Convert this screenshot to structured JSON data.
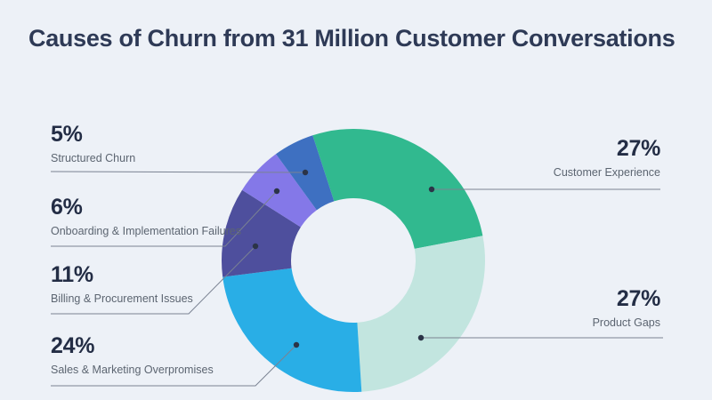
{
  "page": {
    "background": "#EDF1F7"
  },
  "header": {
    "title": "Causes of Churn from 31 Million Customer Conversations"
  },
  "chart_data": {
    "type": "pie",
    "subtype": "donut",
    "title": "Causes of Churn from 31 Million Customer Conversations",
    "clockwise": true,
    "start_angle_deg": -18,
    "legend": "none",
    "categories": [
      "Customer Experience",
      "Product Gaps",
      "Sales & Marketing Overpromises",
      "Billing & Procurement Issues",
      "Onboarding & Implementation Failures",
      "Structured Churn"
    ],
    "values": [
      27,
      27,
      24,
      11,
      6,
      5
    ],
    "segments": [
      {
        "label": "Customer Experience",
        "pct": 27,
        "pct_label": "27%",
        "color": "#31B98F",
        "label_side": "right"
      },
      {
        "label": "Product Gaps",
        "pct": 27,
        "pct_label": "27%",
        "color": "#C2E5DF",
        "label_side": "right"
      },
      {
        "label": "Sales & Marketing Overpromises",
        "pct": 24,
        "pct_label": "24%",
        "color": "#29AEE6",
        "label_side": "left"
      },
      {
        "label": "Billing & Procurement Issues",
        "pct": 11,
        "pct_label": "11%",
        "color": "#4E4F9D",
        "label_side": "left"
      },
      {
        "label": "Onboarding & Implementation Failures",
        "pct": 6,
        "pct_label": "6%",
        "color": "#8478E8",
        "label_side": "left"
      },
      {
        "label": "Structured Churn",
        "pct": 5,
        "pct_label": "5%",
        "color": "#3E70C1",
        "label_side": "left"
      }
    ]
  },
  "style": {
    "title_color": "#2E3A56",
    "pct_color": "#232D45",
    "category_color": "#5C6571",
    "leader_line_color": "#7A8292",
    "dot_color": "#2B3447"
  }
}
